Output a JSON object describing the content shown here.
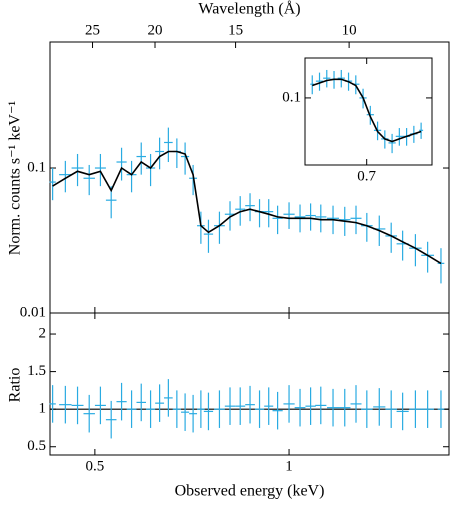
{
  "chart_data": [
    {
      "type": "errorbar",
      "x2label": "Wavelength (Å)",
      "ylabel": "Norm. counts s⁻¹ keV⁻¹",
      "xscale": "log",
      "yscale": "log",
      "x2scale": "log",
      "xlim": [
        0.426,
        1.77
      ],
      "xticks": [
        0.5,
        1
      ],
      "xticklabels": false,
      "x2lim": [
        29.1,
        7.0
      ],
      "x2ticks": [
        25,
        20,
        15,
        10
      ],
      "ylim": [
        0.01,
        0.74
      ],
      "yticks": [
        0.01,
        0.1
      ],
      "x": [
        0.43,
        0.45,
        0.47,
        0.49,
        0.51,
        0.53,
        0.55,
        0.57,
        0.59,
        0.61,
        0.63,
        0.65,
        0.67,
        0.69,
        0.71,
        0.73,
        0.75,
        0.78,
        0.81,
        0.84,
        0.87,
        0.9,
        0.93,
        0.96,
        1.0,
        1.04,
        1.08,
        1.12,
        1.17,
        1.22,
        1.27,
        1.32,
        1.38,
        1.44,
        1.5,
        1.57,
        1.64,
        1.72
      ],
      "series": [
        {
          "style": "errorbar",
          "color": "#29abe2",
          "values": [
            0.08,
            0.09,
            0.1,
            0.085,
            0.1,
            0.06,
            0.11,
            0.09,
            0.12,
            0.1,
            0.13,
            0.15,
            0.13,
            0.12,
            0.085,
            0.04,
            0.035,
            0.04,
            0.048,
            0.052,
            0.055,
            0.05,
            0.05,
            0.045,
            0.048,
            0.046,
            0.047,
            0.046,
            0.045,
            0.044,
            0.045,
            0.04,
            0.038,
            0.034,
            0.03,
            0.028,
            0.025,
            0.022
          ],
          "errors": [
            0.02,
            0.022,
            0.025,
            0.02,
            0.025,
            0.015,
            0.028,
            0.022,
            0.03,
            0.025,
            0.032,
            0.04,
            0.03,
            0.03,
            0.02,
            0.01,
            0.009,
            0.01,
            0.011,
            0.012,
            0.012,
            0.011,
            0.011,
            0.01,
            0.01,
            0.01,
            0.01,
            0.01,
            0.01,
            0.01,
            0.01,
            0.009,
            0.009,
            0.008,
            0.007,
            0.007,
            0.006,
            0.006
          ]
        },
        {
          "style": "line",
          "color": "#000000",
          "values": [
            0.075,
            0.085,
            0.095,
            0.09,
            0.095,
            0.07,
            0.1,
            0.09,
            0.11,
            0.1,
            0.12,
            0.13,
            0.13,
            0.125,
            0.09,
            0.04,
            0.036,
            0.04,
            0.046,
            0.05,
            0.052,
            0.05,
            0.048,
            0.046,
            0.045,
            0.045,
            0.045,
            0.044,
            0.044,
            0.043,
            0.042,
            0.04,
            0.037,
            0.034,
            0.031,
            0.028,
            0.025,
            0.022
          ]
        }
      ]
    },
    {
      "type": "errorbar",
      "xlabel": "Observed energy (keV)",
      "ylabel": "Ratio",
      "xscale": "log",
      "yscale": "linear",
      "xlim": [
        0.426,
        1.77
      ],
      "xticks": [
        0.5,
        1
      ],
      "xticklabels": true,
      "ylim": [
        0.39,
        2.28
      ],
      "yticks": [
        0.5,
        1,
        1.5,
        2
      ],
      "refline": 1,
      "x": [
        0.43,
        0.45,
        0.47,
        0.49,
        0.51,
        0.53,
        0.55,
        0.57,
        0.59,
        0.61,
        0.63,
        0.65,
        0.67,
        0.69,
        0.71,
        0.73,
        0.75,
        0.78,
        0.81,
        0.84,
        0.87,
        0.9,
        0.93,
        0.96,
        1.0,
        1.04,
        1.08,
        1.12,
        1.17,
        1.22,
        1.27,
        1.32,
        1.38,
        1.44,
        1.5,
        1.57,
        1.64,
        1.72
      ],
      "series": [
        {
          "style": "errorbar",
          "color": "#29abe2",
          "values": [
            1.07,
            1.06,
            1.05,
            0.94,
            1.05,
            0.86,
            1.1,
            1.0,
            1.09,
            1.0,
            1.08,
            1.15,
            1.0,
            0.96,
            0.94,
            1.0,
            0.97,
            1.0,
            1.04,
            1.04,
            1.06,
            1.0,
            1.04,
            0.98,
            1.07,
            1.02,
            1.04,
            1.05,
            1.02,
            1.02,
            1.07,
            1.0,
            1.03,
            1.0,
            0.97,
            1.0,
            1.0,
            1.0
          ],
          "errors": [
            0.25,
            0.25,
            0.25,
            0.25,
            0.25,
            0.25,
            0.25,
            0.25,
            0.25,
            0.25,
            0.25,
            0.25,
            0.25,
            0.25,
            0.25,
            0.25,
            0.25,
            0.25,
            0.25,
            0.25,
            0.25,
            0.25,
            0.25,
            0.25,
            0.25,
            0.25,
            0.25,
            0.25,
            0.25,
            0.25,
            0.25,
            0.25,
            0.25,
            0.25,
            0.25,
            0.25,
            0.25,
            0.25
          ]
        }
      ]
    },
    {
      "type": "errorbar",
      "xscale": "linear",
      "yscale": "log",
      "xlim": [
        0.615,
        0.79
      ],
      "xticks": [
        0.7
      ],
      "xticklabels": true,
      "ylim": [
        0.041,
        0.17
      ],
      "yticks": [
        0.1
      ],
      "x": [
        0.625,
        0.635,
        0.645,
        0.655,
        0.665,
        0.675,
        0.685,
        0.695,
        0.705,
        0.715,
        0.725,
        0.735,
        0.745,
        0.755,
        0.765,
        0.775
      ],
      "series": [
        {
          "style": "errorbar",
          "color": "#29abe2",
          "values": [
            0.12,
            0.125,
            0.13,
            0.128,
            0.13,
            0.125,
            0.12,
            0.1,
            0.08,
            0.065,
            0.058,
            0.055,
            0.06,
            0.06,
            0.062,
            0.065
          ],
          "errors": [
            0.015,
            0.015,
            0.015,
            0.015,
            0.015,
            0.015,
            0.015,
            0.013,
            0.01,
            0.008,
            0.007,
            0.007,
            0.007,
            0.007,
            0.007,
            0.007
          ]
        },
        {
          "style": "line",
          "color": "#000000",
          "values": [
            0.118,
            0.122,
            0.126,
            0.128,
            0.128,
            0.124,
            0.118,
            0.1,
            0.078,
            0.064,
            0.058,
            0.056,
            0.058,
            0.06,
            0.062,
            0.064
          ]
        }
      ]
    }
  ]
}
